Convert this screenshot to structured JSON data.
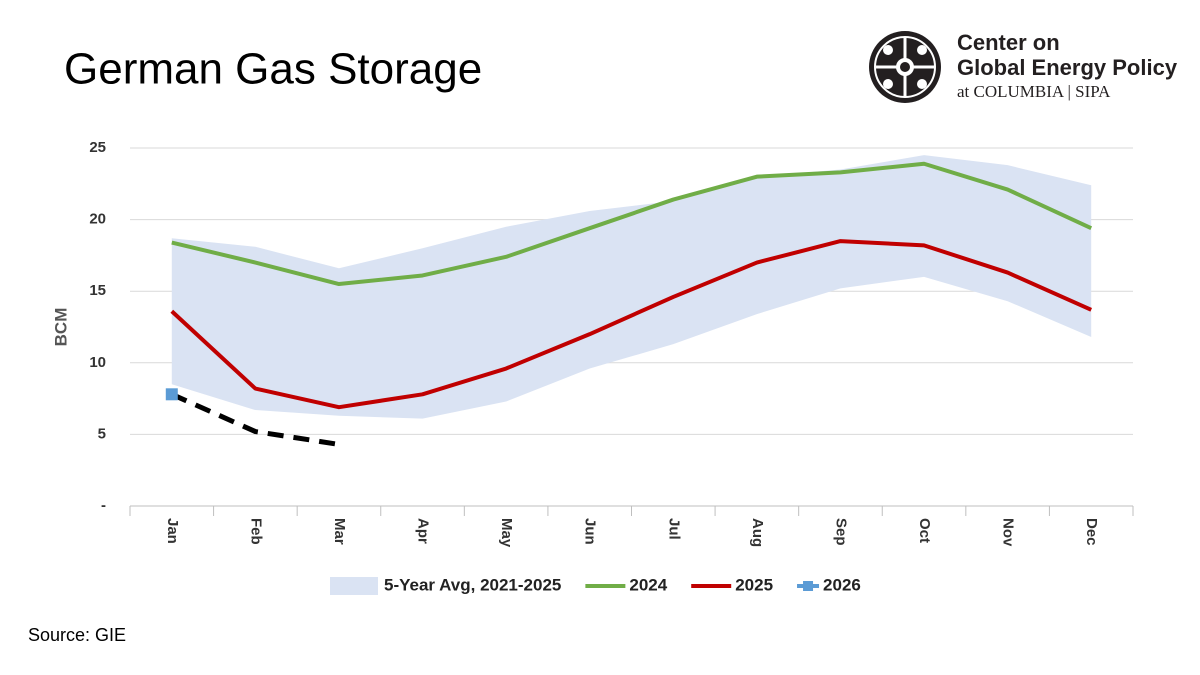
{
  "chart_data": {
    "type": "line",
    "title": "German Gas Storage",
    "y_label": "BCM",
    "source": "Source: GIE",
    "logo": {
      "lines": [
        "Center on",
        "Global Energy Policy",
        "at COLUMBIA | SIPA"
      ]
    },
    "categories": [
      "Jan",
      "Feb",
      "Mar",
      "Apr",
      "May",
      "Jun",
      "Jul",
      "Aug",
      "Sep",
      "Oct",
      "Nov",
      "Dec"
    ],
    "ylim": [
      0,
      25
    ],
    "yticks": [
      {
        "value": 0,
        "label": "-"
      },
      5,
      10,
      15,
      20,
      25
    ],
    "grid": true,
    "band": {
      "name": "5-Year Avg, 2021-2025",
      "color": "#dae3f3",
      "upper": [
        18.7,
        18.1,
        16.6,
        18.0,
        19.5,
        20.6,
        21.3,
        23.0,
        23.5,
        24.5,
        23.8,
        22.4
      ],
      "lower": [
        8.5,
        6.7,
        6.3,
        6.1,
        7.3,
        9.6,
        11.3,
        13.4,
        15.2,
        16.0,
        14.3,
        11.8
      ]
    },
    "series": [
      {
        "name": "2024",
        "color": "#70ad47",
        "values": [
          18.4,
          17.0,
          15.5,
          16.1,
          17.4,
          19.4,
          21.4,
          23.0,
          23.3,
          23.9,
          22.1,
          19.4
        ]
      },
      {
        "name": "2025",
        "color": "#c00000",
        "values": [
          13.6,
          8.2,
          6.9,
          7.8,
          9.6,
          12.0,
          14.6,
          17.0,
          18.5,
          18.2,
          16.3,
          13.7
        ]
      },
      {
        "color": "#000000",
        "dash": true,
        "values": [
          7.8,
          5.2,
          4.3,
          null,
          null,
          null,
          null,
          null,
          null,
          null,
          null,
          null
        ]
      },
      {
        "name": "2026",
        "color": "#5b9bd5",
        "marker": true,
        "values": [
          7.8,
          null,
          null,
          null,
          null,
          null,
          null,
          null,
          null,
          null,
          null,
          null
        ]
      }
    ]
  }
}
